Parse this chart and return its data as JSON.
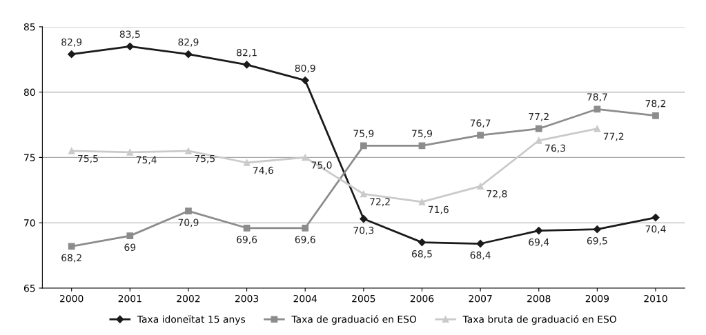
{
  "chart_data": {
    "type": "line",
    "categories": [
      "2000",
      "2001",
      "2002",
      "2003",
      "2004",
      "2005",
      "2006",
      "2007",
      "2008",
      "2009",
      "2010"
    ],
    "series": [
      {
        "name": "Taxa idoneïtat 15 anys",
        "color": "#1a1a1a",
        "marker": "diamond",
        "values": [
          82.9,
          83.5,
          82.9,
          82.1,
          80.9,
          70.3,
          68.5,
          68.4,
          69.4,
          69.5,
          70.4
        ],
        "value_labels": [
          "82,9",
          "83,5",
          "82,9",
          "82,1",
          "80,9",
          "70,3",
          "68,5",
          "68,4",
          "69,4",
          "69,5",
          "70,4"
        ]
      },
      {
        "name": "Taxa de graduació en ESO",
        "color": "#8c8c8c",
        "marker": "square",
        "values": [
          68.2,
          69,
          70.9,
          69.6,
          69.6,
          75.9,
          75.9,
          76.7,
          77.2,
          78.7,
          78.2
        ],
        "value_labels": [
          "68,2",
          "69",
          "70,9",
          "69,6",
          "69,6",
          "75,9",
          "75,9",
          "76,7",
          "77,2",
          "78,7",
          "78,2"
        ]
      },
      {
        "name": "Taxa bruta de graduació en ESO",
        "color": "#cacaca",
        "marker": "triangle",
        "values": [
          75.5,
          75.4,
          75.5,
          74.6,
          75.0,
          72.2,
          71.6,
          72.8,
          76.3,
          77.2,
          null
        ],
        "value_labels": [
          "75,5",
          "75,4",
          "75,5",
          "74,6",
          "75,0",
          "72,2",
          "71,6",
          "72,8",
          "76,3",
          "77,2",
          null
        ]
      }
    ],
    "ylim": [
      65,
      85
    ],
    "yticks": [
      65,
      70,
      75,
      80,
      85
    ],
    "grid": "y",
    "legend": "bottom"
  }
}
